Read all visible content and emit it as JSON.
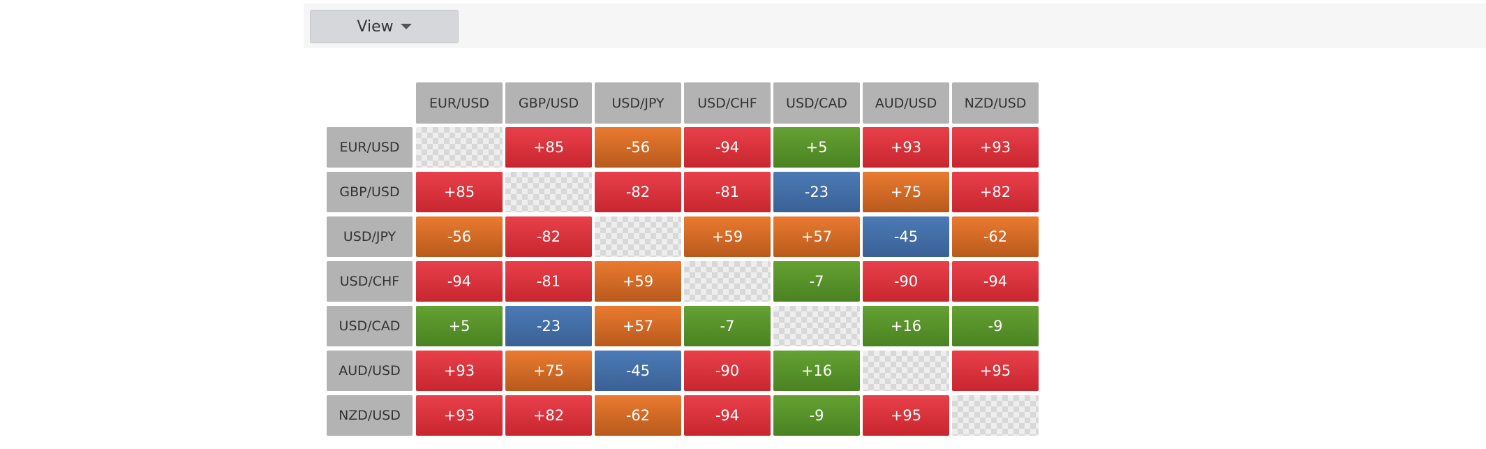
{
  "toolbar": {
    "button": "View"
  },
  "table": {
    "columns": [
      "EUR/USD",
      "GBP/USD",
      "USD/JPY",
      "USD/CHF",
      "USD/CAD",
      "AUD/USD",
      "NZD/USD"
    ],
    "rows": [
      {
        "label": "EUR/USD",
        "cells": [
          null,
          "+85",
          "-56",
          "-94",
          "+5",
          "+93",
          "+93"
        ]
      },
      {
        "label": "GBP/USD",
        "cells": [
          "+85",
          null,
          "-82",
          "-81",
          "-23",
          "+75",
          "+82"
        ]
      },
      {
        "label": "USD/JPY",
        "cells": [
          "-56",
          "-82",
          null,
          "+59",
          "+57",
          "-45",
          "-62"
        ]
      },
      {
        "label": "USD/CHF",
        "cells": [
          "-94",
          "-81",
          "+59",
          null,
          "-7",
          "-90",
          "-94"
        ]
      },
      {
        "label": "USD/CAD",
        "cells": [
          "+5",
          "-23",
          "+57",
          "-7",
          null,
          "+16",
          "-9"
        ]
      },
      {
        "label": "AUD/USD",
        "cells": [
          "+93",
          "+75",
          "-45",
          "-90",
          "+16",
          null,
          "+95"
        ]
      },
      {
        "label": "NZD/USD",
        "cells": [
          "+93",
          "+82",
          "-62",
          "-94",
          "-9",
          "+95",
          null
        ]
      }
    ]
  }
}
